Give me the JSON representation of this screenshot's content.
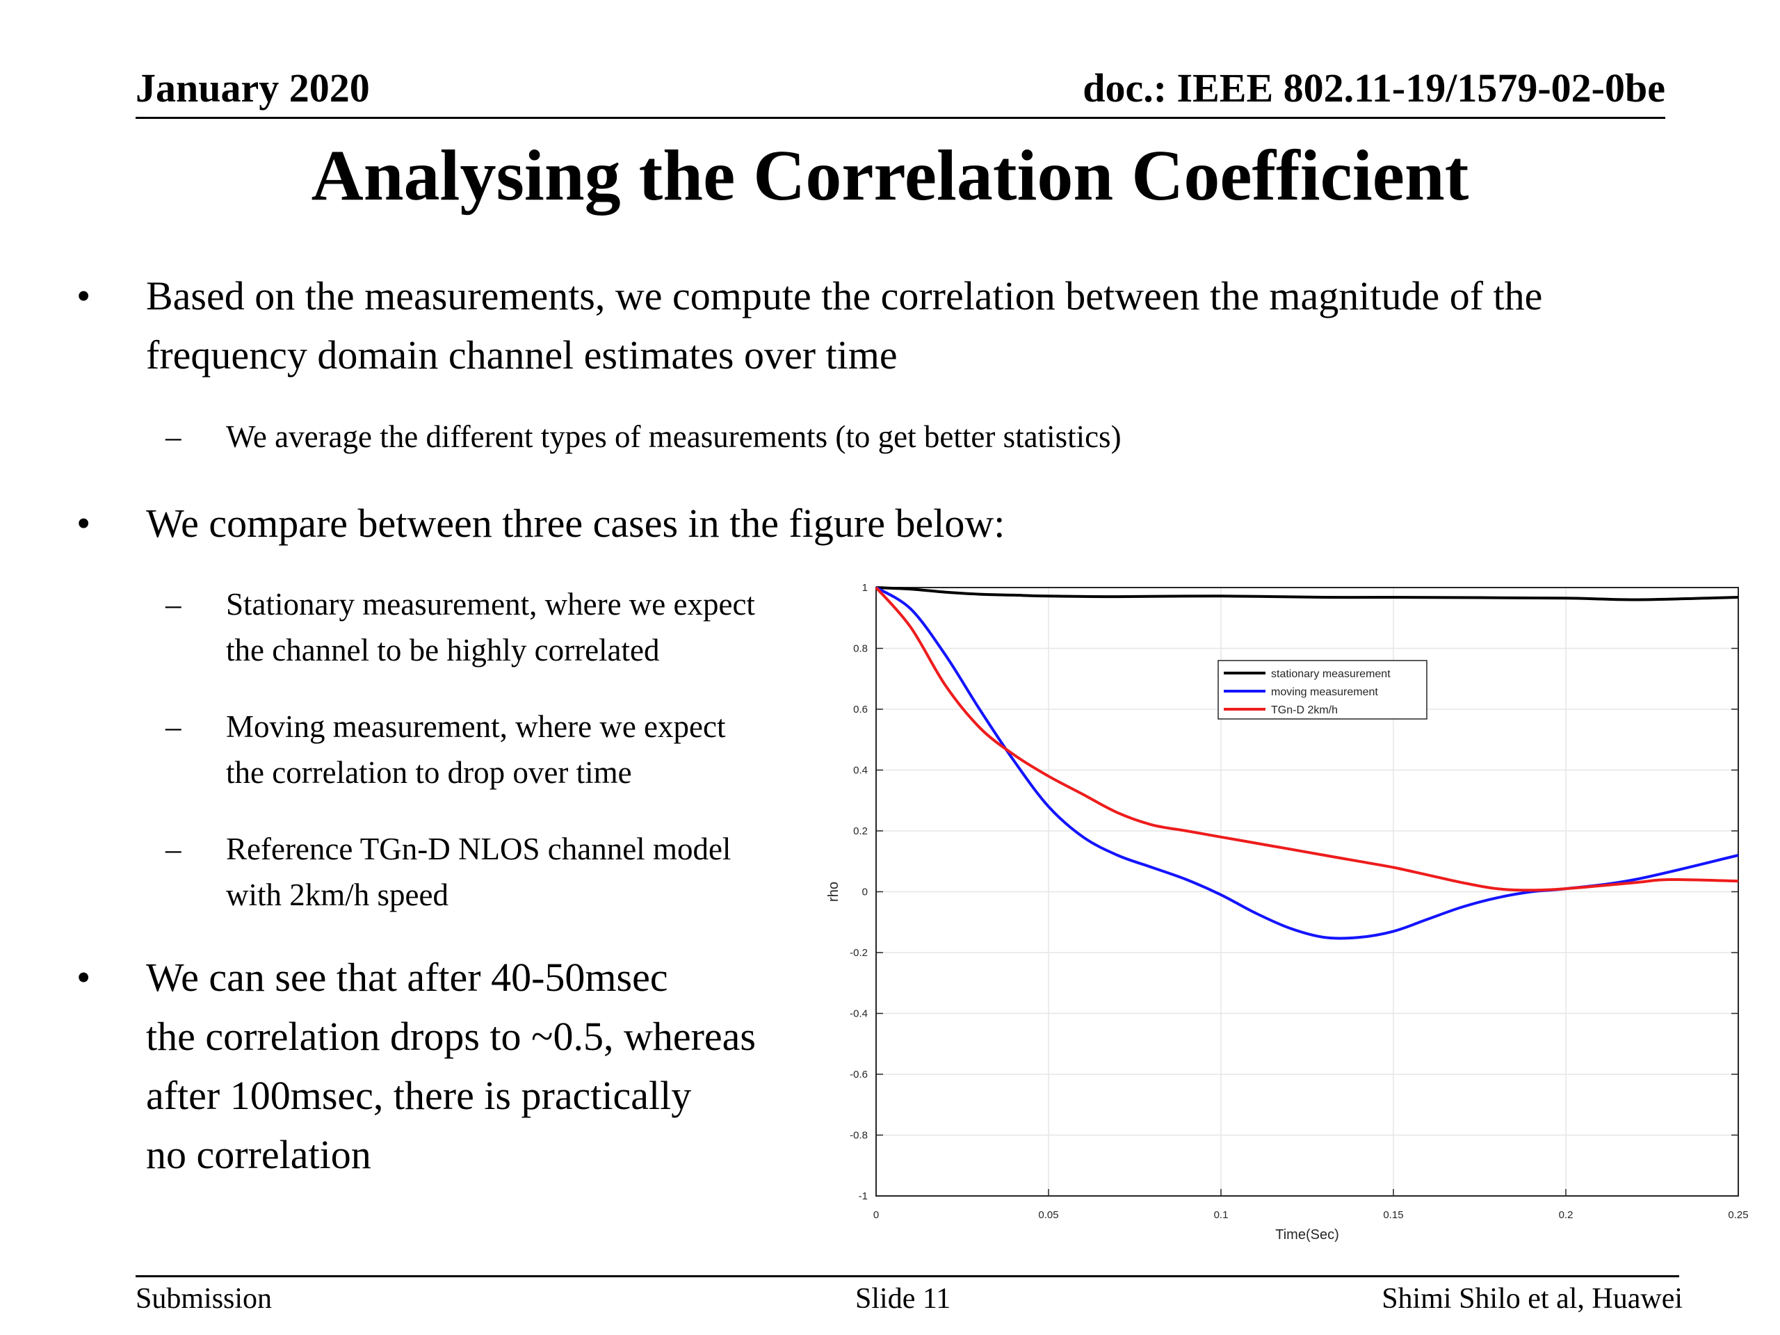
{
  "header": {
    "date": "January 2020",
    "doc": "doc.: IEEE 802.11-19/1579-02-0be"
  },
  "title": "Analysing the Correlation Coefficient",
  "bullets": {
    "b1_line1": "Based on the measurements, we compute the correlation between the magnitude of the",
    "b1_line2": "frequency domain channel estimates over time",
    "b1_sub": "We average the different types of measurements (to get better statistics)",
    "b2": "We compare between three cases in the figure below:",
    "s1_line1": "Stationary measurement, where we expect",
    "s1_line2": "the channel to be highly correlated",
    "s2_line1": "Moving measurement, where we expect",
    "s2_line2": "the correlation to drop over time",
    "s3_line1": "Reference TGn-D NLOS channel model",
    "s3_line2": "with 2km/h speed",
    "b3_line1": "We can see that after 40-50msec",
    "b3_line2": "the correlation drops to ~0.5, whereas",
    "b3_line3": "after 100msec, there is practically",
    "b3_line4": "no correlation",
    "bullet_glyph": "•",
    "dash_glyph": "–"
  },
  "footer": {
    "left": "Submission",
    "center": "Slide 11",
    "right": "Shimi Shilo et al, Huawei"
  },
  "chart_data": {
    "type": "line",
    "xlabel": "Time(Sec)",
    "ylabel": "rho",
    "xlim": [
      0,
      0.25
    ],
    "ylim": [
      -1,
      1
    ],
    "xticks": [
      0,
      0.05,
      0.1,
      0.15,
      0.2,
      0.25
    ],
    "xtick_labels": [
      "0",
      "0.05",
      "0.1",
      "0.15",
      "0.2",
      "0.25"
    ],
    "yticks": [
      -1,
      -0.8,
      -0.6,
      -0.4,
      -0.2,
      0,
      0.2,
      0.4,
      0.6,
      0.8,
      1
    ],
    "ytick_labels": [
      "-1",
      "-0.8",
      "-0.6",
      "-0.4",
      "-0.2",
      "0",
      "0.2",
      "0.4",
      "0.6",
      "0.8",
      "1"
    ],
    "grid": true,
    "legend_position": "top-center-right",
    "series": [
      {
        "name": "stationary measurement",
        "color": "#000000",
        "x": [
          0,
          0.01,
          0.02,
          0.03,
          0.04,
          0.05,
          0.07,
          0.1,
          0.13,
          0.15,
          0.2,
          0.22,
          0.25
        ],
        "y": [
          1,
          0.995,
          0.985,
          0.978,
          0.975,
          0.972,
          0.97,
          0.972,
          0.968,
          0.968,
          0.965,
          0.96,
          0.968
        ]
      },
      {
        "name": "moving measurement",
        "color": "#1414ff",
        "x": [
          0,
          0.01,
          0.02,
          0.03,
          0.04,
          0.05,
          0.06,
          0.07,
          0.08,
          0.09,
          0.1,
          0.11,
          0.12,
          0.13,
          0.14,
          0.15,
          0.16,
          0.17,
          0.18,
          0.19,
          0.2,
          0.22,
          0.25
        ],
        "y": [
          1,
          0.93,
          0.78,
          0.6,
          0.43,
          0.28,
          0.18,
          0.12,
          0.08,
          0.04,
          -0.01,
          -0.07,
          -0.12,
          -0.15,
          -0.15,
          -0.13,
          -0.09,
          -0.05,
          -0.02,
          0.0,
          0.01,
          0.04,
          0.12
        ]
      },
      {
        "name": "TGn-D 2km/h",
        "color": "#ee1c1c",
        "x": [
          0,
          0.01,
          0.02,
          0.03,
          0.04,
          0.05,
          0.06,
          0.07,
          0.08,
          0.09,
          0.1,
          0.11,
          0.12,
          0.13,
          0.14,
          0.15,
          0.16,
          0.17,
          0.18,
          0.19,
          0.2,
          0.22,
          0.23,
          0.25
        ],
        "y": [
          1,
          0.87,
          0.68,
          0.54,
          0.45,
          0.38,
          0.32,
          0.26,
          0.22,
          0.2,
          0.18,
          0.16,
          0.14,
          0.12,
          0.1,
          0.08,
          0.055,
          0.03,
          0.01,
          0.005,
          0.01,
          0.03,
          0.04,
          0.035
        ]
      }
    ]
  }
}
